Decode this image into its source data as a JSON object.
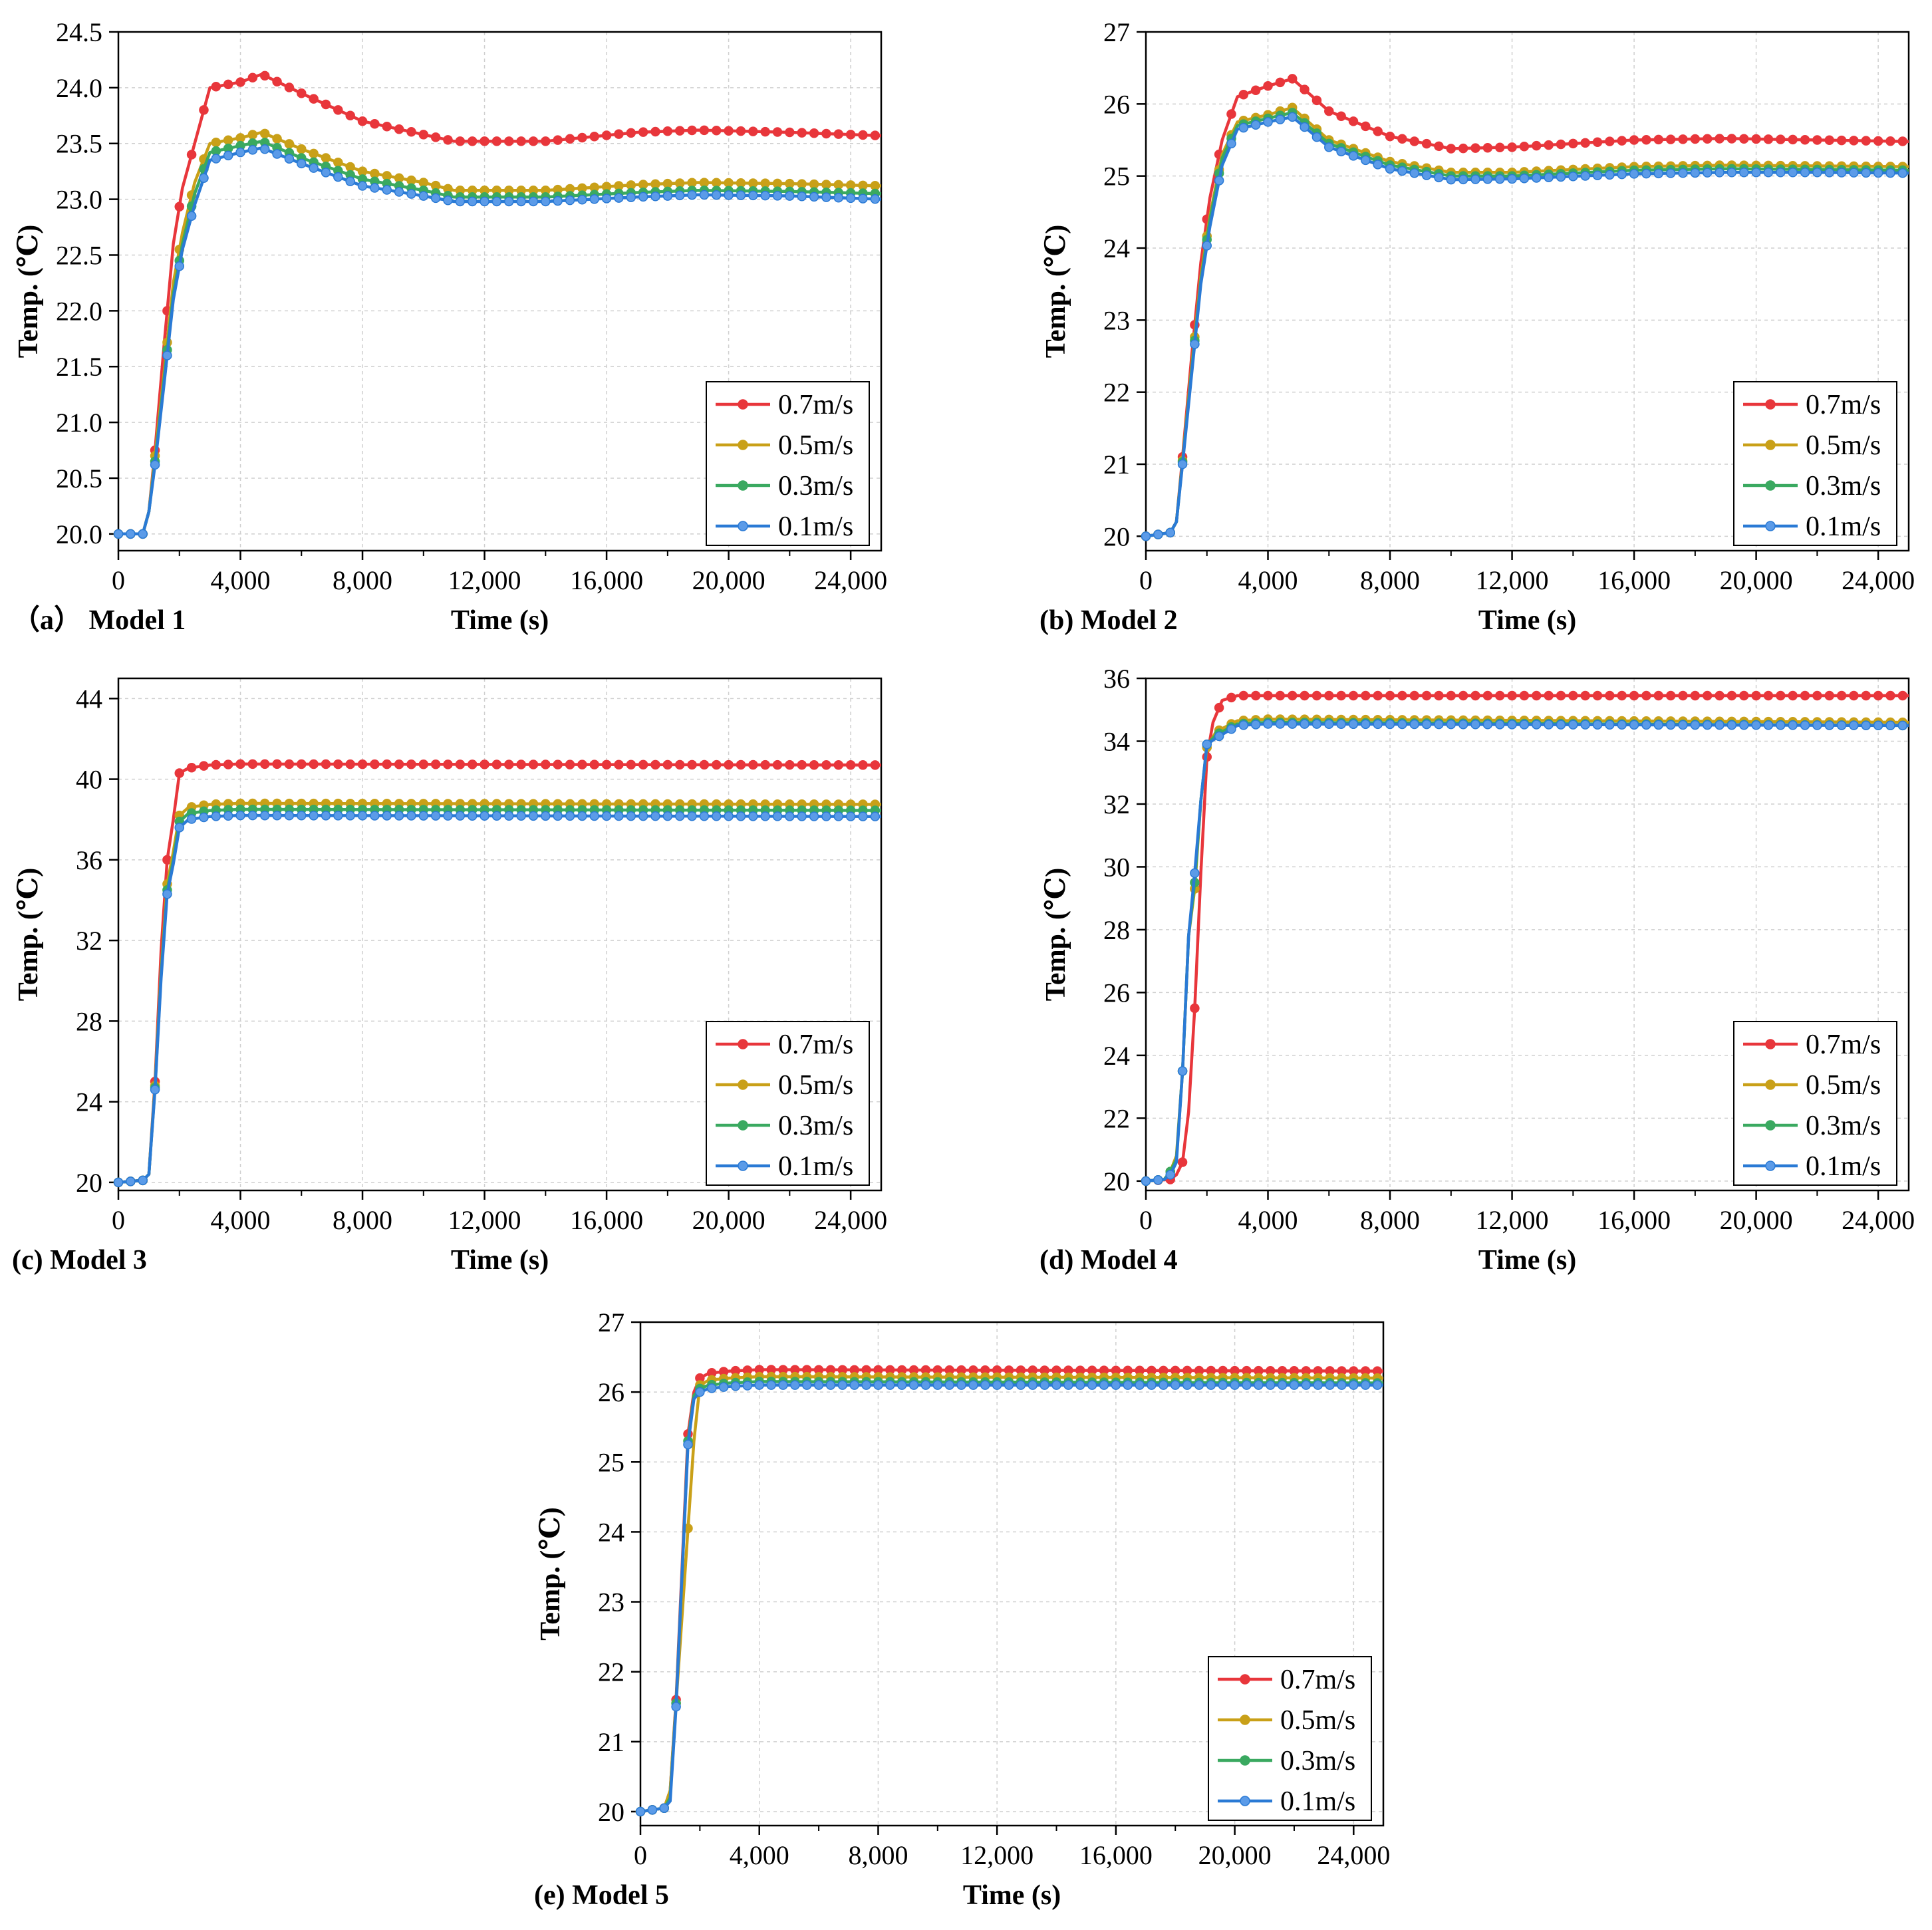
{
  "colors": {
    "v07": "#e8363b",
    "v05": "#c9a018",
    "v03": "#3aa960",
    "v01": "#2a7ad5",
    "marker_v01": "#5b9be8",
    "grid": "#cfcfcf",
    "axis": "#000000"
  },
  "chart_data": [
    {
      "id": "a",
      "type": "line",
      "caption": "（a） Model 1",
      "xlabel": "Time (s)",
      "ylabel": "Temp. (℃)",
      "xlim": [
        0,
        25000
      ],
      "ylim": [
        19.85,
        24.5
      ],
      "xticks": [
        0,
        4000,
        8000,
        12000,
        16000,
        20000,
        24000
      ],
      "xtick_labels": [
        "0",
        "4,000",
        "8,000",
        "12,000",
        "16,000",
        "20,000",
        "24,000"
      ],
      "yticks": [
        20.0,
        20.5,
        21.0,
        21.5,
        22.0,
        22.5,
        23.0,
        23.5,
        24.0,
        24.5
      ],
      "ytick_labels": [
        "20.0",
        "20.5",
        "21.0",
        "21.5",
        "22.0",
        "22.5",
        "23.0",
        "23.5",
        "24.0",
        "24.5"
      ],
      "legend": [
        "0.7m/s",
        "0.5m/s",
        "0.3m/s",
        "0.1m/s"
      ],
      "legend_position": "bottom-right",
      "grid": true,
      "series": [
        {
          "name": "0.7m/s",
          "x": [
            0,
            800,
            1000,
            1200,
            1500,
            1800,
            2100,
            2500,
            3000,
            4000,
            4700,
            6000,
            8000,
            10000,
            11000,
            14000,
            17000,
            19000,
            22000,
            25000
          ],
          "y": [
            20.0,
            20.0,
            20.2,
            20.75,
            21.7,
            22.6,
            23.1,
            23.5,
            24.0,
            24.05,
            24.12,
            23.95,
            23.7,
            23.58,
            23.52,
            23.52,
            23.6,
            23.62,
            23.6,
            23.57
          ]
        },
        {
          "name": "0.5m/s",
          "x": [
            0,
            800,
            1000,
            1200,
            1500,
            1800,
            2100,
            2500,
            3000,
            4000,
            4700,
            6000,
            8000,
            10000,
            11000,
            14000,
            17000,
            19000,
            22000,
            25000
          ],
          "y": [
            20.0,
            20.0,
            20.2,
            20.7,
            21.45,
            22.25,
            22.7,
            23.15,
            23.5,
            23.55,
            23.6,
            23.45,
            23.25,
            23.15,
            23.08,
            23.08,
            23.13,
            23.15,
            23.14,
            23.12
          ]
        },
        {
          "name": "0.3m/s",
          "x": [
            0,
            800,
            1000,
            1200,
            1500,
            1800,
            2100,
            2500,
            3000,
            4000,
            4700,
            6000,
            8000,
            10000,
            11000,
            14000,
            17000,
            19000,
            22000,
            25000
          ],
          "y": [
            20.0,
            20.0,
            20.2,
            20.65,
            21.4,
            22.15,
            22.6,
            23.05,
            23.42,
            23.48,
            23.52,
            23.37,
            23.18,
            23.08,
            23.02,
            23.02,
            23.06,
            23.08,
            23.07,
            23.05
          ]
        },
        {
          "name": "0.1m/s",
          "x": [
            0,
            800,
            1000,
            1200,
            1500,
            1800,
            2100,
            2500,
            3000,
            4000,
            4700,
            6000,
            8000,
            10000,
            11000,
            14000,
            17000,
            19000,
            22000,
            25000
          ],
          "y": [
            20.0,
            20.0,
            20.2,
            20.62,
            21.35,
            22.1,
            22.55,
            22.95,
            23.35,
            23.42,
            23.46,
            23.32,
            23.12,
            23.03,
            22.98,
            22.98,
            23.02,
            23.04,
            23.03,
            23.0
          ]
        }
      ]
    },
    {
      "id": "b",
      "type": "line",
      "caption": "(b) Model 2",
      "xlabel": "Time (s)",
      "ylabel": "Temp. (℃)",
      "xlim": [
        0,
        25000
      ],
      "ylim": [
        19.8,
        27
      ],
      "xticks": [
        0,
        4000,
        8000,
        12000,
        16000,
        20000,
        24000
      ],
      "xtick_labels": [
        "0",
        "4,000",
        "8,000",
        "12,000",
        "16,000",
        "20,000",
        "24,000"
      ],
      "yticks": [
        20,
        21,
        22,
        23,
        24,
        25,
        26,
        27
      ],
      "ytick_labels": [
        "20",
        "21",
        "22",
        "23",
        "24",
        "25",
        "26",
        "27"
      ],
      "legend": [
        "0.7m/s",
        "0.5m/s",
        "0.3m/s",
        "0.1m/s"
      ],
      "legend_position": "bottom-right",
      "grid": true,
      "series": [
        {
          "name": "0.7m/s",
          "x": [
            0,
            800,
            1000,
            1200,
            1500,
            1800,
            2100,
            2500,
            3000,
            4000,
            4800,
            6000,
            8000,
            10000,
            12000,
            16000,
            19000,
            22000,
            25000
          ],
          "y": [
            20.0,
            20.05,
            20.2,
            21.1,
            22.5,
            23.8,
            24.7,
            25.5,
            26.1,
            26.25,
            26.35,
            25.9,
            25.55,
            25.38,
            25.4,
            25.5,
            25.52,
            25.5,
            25.48
          ]
        },
        {
          "name": "0.5m/s",
          "x": [
            0,
            800,
            1000,
            1200,
            1500,
            1800,
            2100,
            2500,
            3000,
            4000,
            4800,
            6000,
            8000,
            10000,
            12000,
            16000,
            19000,
            22000,
            25000
          ],
          "y": [
            20.0,
            20.05,
            20.2,
            21.05,
            22.35,
            23.6,
            24.45,
            25.3,
            25.75,
            25.85,
            25.95,
            25.5,
            25.2,
            25.05,
            25.05,
            25.13,
            25.15,
            25.14,
            25.13
          ]
        },
        {
          "name": "0.3m/s",
          "x": [
            0,
            800,
            1000,
            1200,
            1500,
            1800,
            2100,
            2500,
            3000,
            4000,
            4800,
            6000,
            8000,
            10000,
            12000,
            16000,
            19000,
            22000,
            25000
          ],
          "y": [
            20.0,
            20.05,
            20.2,
            21.03,
            22.3,
            23.55,
            24.4,
            25.25,
            25.7,
            25.8,
            25.88,
            25.45,
            25.15,
            25.0,
            25.0,
            25.08,
            25.1,
            25.09,
            25.08
          ]
        },
        {
          "name": "0.1m/s",
          "x": [
            0,
            800,
            1000,
            1200,
            1500,
            1800,
            2100,
            2500,
            3000,
            4000,
            4800,
            6000,
            8000,
            10000,
            12000,
            16000,
            19000,
            22000,
            25000
          ],
          "y": [
            20.0,
            20.05,
            20.2,
            21.0,
            22.25,
            23.5,
            24.3,
            25.15,
            25.65,
            25.75,
            25.82,
            25.4,
            25.1,
            24.95,
            24.96,
            25.03,
            25.05,
            25.05,
            25.04
          ]
        }
      ]
    },
    {
      "id": "c",
      "type": "line",
      "caption": "(c) Model 3",
      "xlabel": "Time (s)",
      "ylabel": "Temp. (℃)",
      "xlim": [
        0,
        25000
      ],
      "ylim": [
        19.6,
        45
      ],
      "xticks": [
        0,
        4000,
        8000,
        12000,
        16000,
        20000,
        24000
      ],
      "xtick_labels": [
        "0",
        "4,000",
        "8,000",
        "12,000",
        "16,000",
        "20,000",
        "24,000"
      ],
      "yticks": [
        20,
        24,
        28,
        32,
        36,
        40,
        44
      ],
      "ytick_labels": [
        "20",
        "24",
        "28",
        "32",
        "36",
        "40",
        "44"
      ],
      "legend": [
        "0.7m/s",
        "0.5m/s",
        "0.3m/s",
        "0.1m/s"
      ],
      "legend_position": "bottom-right",
      "grid": true,
      "series": [
        {
          "name": "0.7m/s",
          "x": [
            0,
            800,
            1000,
            1200,
            1400,
            1600,
            1800,
            2000,
            2300,
            3000,
            4000,
            25000
          ],
          "y": [
            20.0,
            20.1,
            20.4,
            25.0,
            31.5,
            36.0,
            38.0,
            40.3,
            40.55,
            40.7,
            40.75,
            40.7
          ]
        },
        {
          "name": "0.5m/s",
          "x": [
            0,
            800,
            1000,
            1200,
            1400,
            1600,
            1800,
            2000,
            2300,
            3000,
            4000,
            25000
          ],
          "y": [
            20.0,
            20.1,
            20.4,
            24.8,
            30.5,
            34.8,
            36.4,
            38.2,
            38.6,
            38.75,
            38.8,
            38.75
          ]
        },
        {
          "name": "0.3m/s",
          "x": [
            0,
            800,
            1000,
            1200,
            1400,
            1600,
            1800,
            2000,
            2300,
            3000,
            4000,
            25000
          ],
          "y": [
            20.0,
            20.1,
            20.4,
            24.7,
            30.3,
            34.5,
            36.0,
            37.9,
            38.3,
            38.45,
            38.5,
            38.45
          ]
        },
        {
          "name": "0.1m/s",
          "x": [
            0,
            800,
            1000,
            1200,
            1400,
            1600,
            1800,
            2000,
            2300,
            3000,
            4000,
            25000
          ],
          "y": [
            20.0,
            20.1,
            20.4,
            24.6,
            30.1,
            34.3,
            35.8,
            37.6,
            38.0,
            38.15,
            38.2,
            38.15
          ]
        }
      ]
    },
    {
      "id": "d",
      "type": "line",
      "caption": "(d) Model 4",
      "xlabel": "Time (s)",
      "ylabel": "Temp. (℃)",
      "xlim": [
        0,
        25000
      ],
      "ylim": [
        19.7,
        36
      ],
      "xticks": [
        0,
        4000,
        8000,
        12000,
        16000,
        20000,
        24000
      ],
      "xtick_labels": [
        "0",
        "4,000",
        "8,000",
        "12,000",
        "16,000",
        "20,000",
        "24,000"
      ],
      "yticks": [
        20,
        22,
        24,
        26,
        28,
        30,
        32,
        34,
        36
      ],
      "ytick_labels": [
        "20",
        "22",
        "24",
        "26",
        "28",
        "30",
        "32",
        "34",
        "36"
      ],
      "legend": [
        "0.7m/s",
        "0.5m/s",
        "0.3m/s",
        "0.1m/s"
      ],
      "legend_position": "bottom-right",
      "grid": true,
      "series": [
        {
          "name": "0.7m/s",
          "x": [
            0,
            800,
            1000,
            1200,
            1400,
            1600,
            1800,
            2000,
            2200,
            2500,
            3000,
            4000,
            25000
          ],
          "y": [
            20.0,
            20.05,
            20.2,
            20.6,
            22.2,
            25.5,
            29.8,
            33.5,
            34.6,
            35.3,
            35.45,
            35.45,
            35.45
          ]
        },
        {
          "name": "0.5m/s",
          "x": [
            0,
            600,
            800,
            1000,
            1200,
            1400,
            1600,
            1800,
            2000,
            2300,
            3000,
            4000,
            25000
          ],
          "y": [
            20.0,
            20.05,
            20.3,
            20.8,
            23.5,
            27.8,
            29.3,
            32.1,
            33.8,
            34.3,
            34.65,
            34.7,
            34.6
          ]
        },
        {
          "name": "0.3m/s",
          "x": [
            0,
            600,
            800,
            1000,
            1200,
            1400,
            1600,
            1800,
            2000,
            2300,
            3000,
            4000,
            25000
          ],
          "y": [
            20.0,
            20.05,
            20.3,
            20.7,
            23.5,
            27.8,
            29.5,
            32.1,
            33.9,
            34.2,
            34.55,
            34.6,
            34.5
          ]
        },
        {
          "name": "0.1m/s",
          "x": [
            0,
            600,
            800,
            1000,
            1200,
            1400,
            1600,
            1800,
            2000,
            2300,
            3000,
            4000,
            25000
          ],
          "y": [
            20.0,
            20.05,
            20.2,
            20.6,
            23.5,
            27.8,
            29.8,
            32.1,
            33.9,
            34.1,
            34.5,
            34.55,
            34.5
          ]
        }
      ]
    },
    {
      "id": "e",
      "type": "line",
      "caption": "(e) Model 5",
      "xlabel": "Time (s)",
      "ylabel": "Temp. (℃)",
      "xlim": [
        0,
        25000
      ],
      "ylim": [
        19.8,
        27
      ],
      "xticks": [
        0,
        4000,
        8000,
        12000,
        16000,
        20000,
        24000
      ],
      "xtick_labels": [
        "0",
        "4,000",
        "8,000",
        "12,000",
        "16,000",
        "20,000",
        "24,000"
      ],
      "yticks": [
        20,
        21,
        22,
        23,
        24,
        25,
        26,
        27
      ],
      "ytick_labels": [
        "20",
        "21",
        "22",
        "23",
        "24",
        "25",
        "26",
        "27"
      ],
      "legend": [
        "0.7m/s",
        "0.5m/s",
        "0.3m/s",
        "0.1m/s"
      ],
      "legend_position": "bottom-right",
      "grid": true,
      "series": [
        {
          "name": "0.7m/s",
          "x": [
            0,
            800,
            1000,
            1200,
            1400,
            1600,
            1800,
            2000,
            2300,
            3000,
            4000,
            25000
          ],
          "y": [
            20.0,
            20.05,
            20.3,
            21.6,
            23.5,
            25.4,
            26.0,
            26.2,
            26.27,
            26.3,
            26.32,
            26.3
          ]
        },
        {
          "name": "0.5m/s",
          "x": [
            0,
            800,
            1000,
            1200,
            1400,
            1600,
            1800,
            2000,
            2300,
            3000,
            4000,
            25000
          ],
          "y": [
            20.0,
            20.05,
            20.3,
            21.55,
            22.8,
            24.05,
            25.3,
            26.1,
            26.17,
            26.2,
            26.22,
            26.2
          ]
        },
        {
          "name": "0.3m/s",
          "x": [
            0,
            800,
            1000,
            1200,
            1400,
            1600,
            1800,
            2000,
            2300,
            3000,
            4000,
            25000
          ],
          "y": [
            20.0,
            20.05,
            20.2,
            21.55,
            23.4,
            25.3,
            25.95,
            26.05,
            26.1,
            26.13,
            26.15,
            26.13
          ]
        },
        {
          "name": "0.1m/s",
          "x": [
            0,
            800,
            1000,
            1200,
            1400,
            1600,
            1800,
            2000,
            2300,
            3000,
            4000,
            25000
          ],
          "y": [
            20.0,
            20.05,
            20.15,
            21.5,
            23.4,
            25.25,
            25.9,
            26.0,
            26.05,
            26.08,
            26.1,
            26.1
          ]
        }
      ]
    }
  ]
}
